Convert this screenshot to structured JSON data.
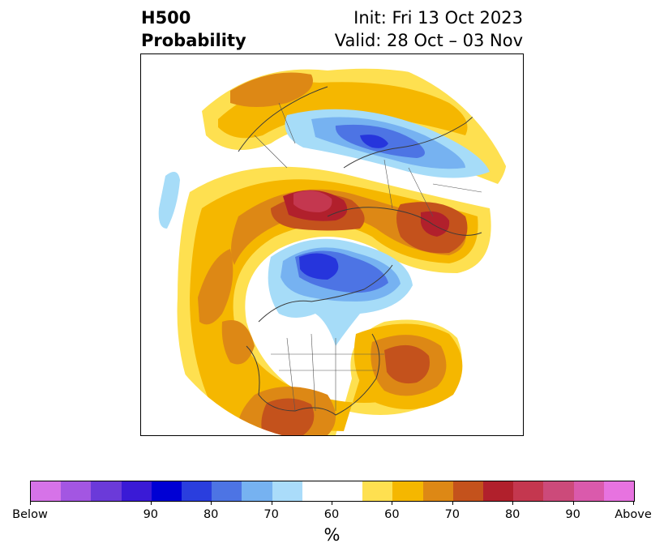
{
  "header": {
    "title_line1": "H500",
    "title_line2": "Probability",
    "init_text": "Init: Fri 13 Oct 2023",
    "valid_text": "Valid: 28 Oct – 03 Nov"
  },
  "map": {
    "projection": "north-polar-stereographic",
    "lines": [
      "coastlines",
      "country borders",
      "US state borders"
    ],
    "colors": {
      "below_60": "#a6dcf8",
      "below_70": "#76b2f1",
      "below_80": "#4d74e4",
      "below_90": "#2635dc",
      "above_60": "#fee050",
      "above_70": "#f5b700",
      "above_80": "#dd8815",
      "above_90": "#c4521c",
      "above_peak": "#b1202c",
      "above_max": "#c4374f"
    }
  },
  "colorbar": {
    "unit_label": "%",
    "colors": [
      "#d673e8",
      "#a356e2",
      "#6b3ad9",
      "#3a1ad6",
      "#0000d4",
      "#2a3ede",
      "#4d74e4",
      "#76b2f1",
      "#aadcfa",
      "#ffffff",
      "#fee050",
      "#f5b700",
      "#dd8815",
      "#c4521c",
      "#b1202c",
      "#c4374f",
      "#cc4a7a",
      "#da5aac",
      "#e773e0"
    ],
    "tick_labels": [
      "Below",
      "90",
      "80",
      "70",
      "60",
      "60",
      "70",
      "80",
      "90",
      "Above"
    ]
  }
}
